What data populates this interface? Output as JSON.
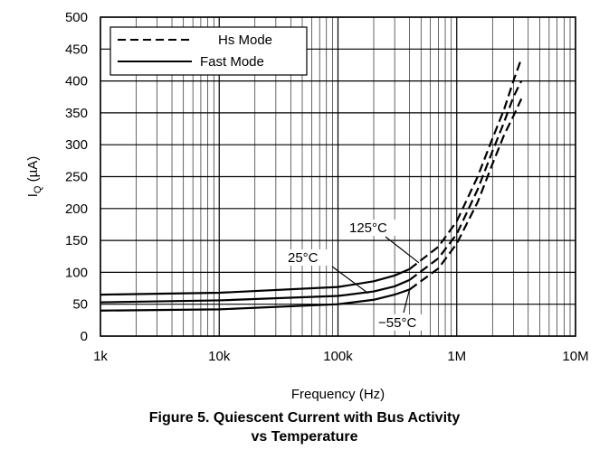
{
  "chart_data": {
    "type": "line",
    "title": "Figure 5. Quiescent Current with Bus Activity vs Temperature",
    "title_lines": [
      "Figure 5. Quiescent Current with Bus Activity",
      "vs Temperature"
    ],
    "xlabel": "Frequency (Hz)",
    "ylabel": "IQ (µA)",
    "ylabel_main": "I",
    "ylabel_sub": "Q",
    "ylabel_rest": " (µA)",
    "x_scale": "log",
    "xlim": [
      1000,
      10000000
    ],
    "ylim": [
      0,
      500
    ],
    "x_ticks": [
      1000,
      10000,
      100000,
      1000000,
      10000000
    ],
    "x_tick_labels": [
      "1k",
      "10k",
      "100k",
      "1M",
      "10M"
    ],
    "y_ticks": [
      0,
      50,
      100,
      150,
      200,
      250,
      300,
      350,
      400,
      450,
      500
    ],
    "y_tick_labels": [
      "0",
      "50",
      "100",
      "150",
      "200",
      "250",
      "300",
      "350",
      "400",
      "450",
      "500"
    ],
    "grid": true,
    "legend_position": "top-left",
    "legend": [
      {
        "label": "Hs Mode",
        "style": "dashed"
      },
      {
        "label": "Fast Mode",
        "style": "solid"
      }
    ],
    "series": [
      {
        "temp": "125°C",
        "mode": "Fast Mode",
        "style": "solid",
        "x": [
          1000,
          10000,
          100000,
          200000,
          300000,
          400000
        ],
        "y": [
          65,
          68,
          77,
          86,
          95,
          105
        ]
      },
      {
        "temp": "125°C",
        "mode": "Hs Mode",
        "style": "dashed",
        "x": [
          400000,
          700000,
          1000000,
          1500000,
          2000000,
          2500000,
          3000000,
          3500000
        ],
        "y": [
          105,
          140,
          180,
          250,
          310,
          355,
          400,
          435
        ]
      },
      {
        "temp": "25°C",
        "mode": "Fast Mode",
        "style": "solid",
        "x": [
          1000,
          10000,
          100000,
          200000,
          300000,
          400000
        ],
        "y": [
          53,
          56,
          63,
          70,
          78,
          88
        ]
      },
      {
        "temp": "25°C",
        "mode": "Hs Mode",
        "style": "dashed",
        "x": [
          400000,
          700000,
          1000000,
          1500000,
          2000000,
          2500000,
          3000000,
          3500000
        ],
        "y": [
          88,
          122,
          160,
          230,
          290,
          335,
          375,
          400
        ]
      },
      {
        "temp": "−55°C",
        "mode": "Fast Mode",
        "style": "solid",
        "x": [
          1000,
          10000,
          100000,
          200000,
          300000,
          400000
        ],
        "y": [
          40,
          42,
          50,
          57,
          65,
          73
        ]
      },
      {
        "temp": "−55°C",
        "mode": "Hs Mode",
        "style": "dashed",
        "x": [
          400000,
          700000,
          1000000,
          1500000,
          2000000,
          2500000,
          3000000,
          3500000
        ],
        "y": [
          73,
          106,
          145,
          210,
          270,
          315,
          345,
          372
        ]
      }
    ],
    "annotations": [
      {
        "text": "125°C",
        "target_x": 480000,
        "target_y": 115
      },
      {
        "text": "25°C",
        "target_x": 180000,
        "target_y": 67
      },
      {
        "text": "−55°C",
        "target_x": 400000,
        "target_y": 73
      }
    ]
  }
}
